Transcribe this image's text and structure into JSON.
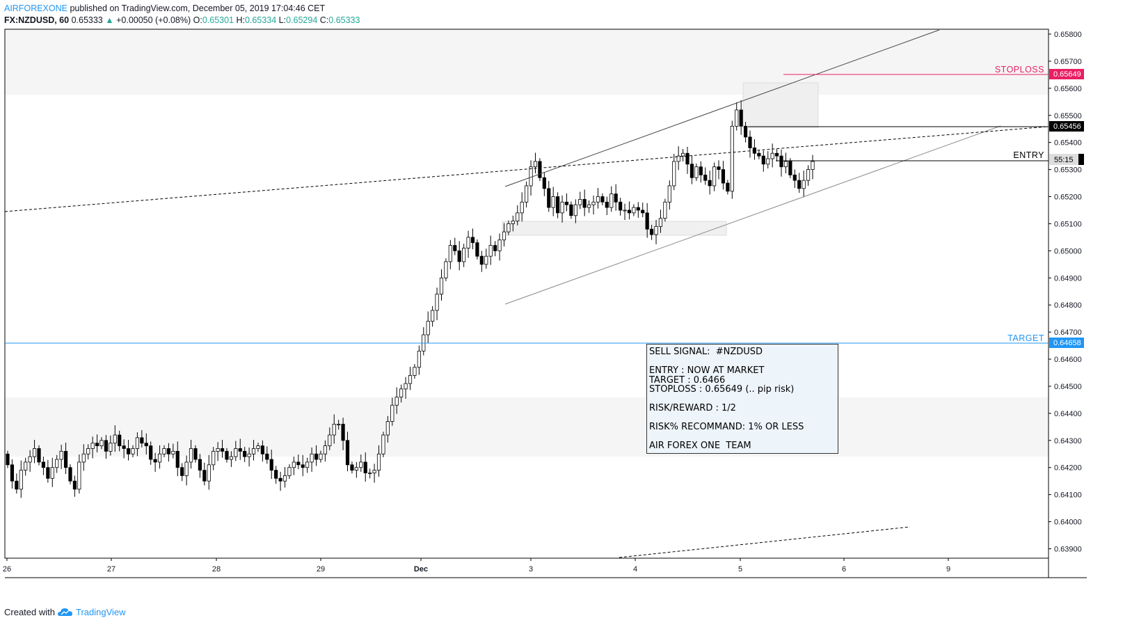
{
  "header": {
    "author": "AIRFOREXONE",
    "published": "published on TradingView.com, December 05, 2019 17:04:46 CET",
    "symbol": "FX:NZDUSD, 60",
    "last": "0.65333",
    "change_arrow": "▲",
    "change": "+0.00050 (+0.08%)",
    "o_label": "O:",
    "o": "0.65301",
    "h_label": "H:",
    "h": "0.65334",
    "l_label": "L:",
    "l": "0.65294",
    "c_label": "C:",
    "c": "0.65333"
  },
  "footer": {
    "created_with": "Created with",
    "brand": "TradingView"
  },
  "signal_box": {
    "line1": "SELL SIGNAL:  #NZDUSD",
    "line2": "ENTRY : NOW AT MARKET",
    "line3": "TARGET : 0.6466",
    "line4": "STOPLOSS : 0.65649 (.. pip risk)",
    "line5": "RISK/REWARD : 1/2",
    "line6": "RISK% RECOMMAND: 1% OR LESS",
    "line7": "AIR FOREX ONE  TEAM"
  },
  "colors": {
    "stoploss": "#e91e63",
    "target": "#2196f3",
    "up_candle": "#ffffff",
    "down_candle": "#000000",
    "price_up": "#26a69a"
  },
  "chart_data": {
    "type": "candlestick",
    "symbol": "FX:NZDUSD",
    "interval": "60",
    "y_ticks": [
      "0.65800",
      "0.65700",
      "0.65600",
      "0.65500",
      "0.65400",
      "0.65300",
      "0.65200",
      "0.65100",
      "0.65000",
      "0.64900",
      "0.64800",
      "0.64700",
      "0.64600",
      "0.64500",
      "0.64400",
      "0.64300",
      "0.64200",
      "0.64100",
      "0.64000",
      "0.63900"
    ],
    "x_ticks": [
      "26",
      "27",
      "28",
      "29",
      "Dec",
      "3",
      "4",
      "5",
      "6",
      "9"
    ],
    "levels": [
      {
        "label": "STOPLOSS",
        "value": "0.65649",
        "color": "#e91e63"
      },
      {
        "label": "",
        "value": "0.65456",
        "color": "#000000"
      },
      {
        "label": "ENTRY",
        "value": "55:15",
        "color": "#000000"
      },
      {
        "label": "TARGET",
        "value": "0.64658",
        "color": "#2196f3"
      }
    ],
    "closes": [
      0.6421,
      0.6415,
      0.6412,
      0.6419,
      0.6422,
      0.6424,
      0.6427,
      0.6422,
      0.642,
      0.6416,
      0.642,
      0.6423,
      0.6426,
      0.642,
      0.6415,
      0.6412,
      0.6422,
      0.6425,
      0.6427,
      0.6429,
      0.6428,
      0.643,
      0.6426,
      0.6429,
      0.6432,
      0.6428,
      0.6427,
      0.6425,
      0.6427,
      0.6431,
      0.6429,
      0.6428,
      0.6423,
      0.6422,
      0.6425,
      0.6427,
      0.6425,
      0.6426,
      0.642,
      0.6417,
      0.6422,
      0.6427,
      0.6423,
      0.6419,
      0.6415,
      0.6421,
      0.6426,
      0.6427,
      0.6426,
      0.6423,
      0.6424,
      0.6427,
      0.6426,
      0.6424,
      0.6425,
      0.6427,
      0.6428,
      0.6425,
      0.6423,
      0.6419,
      0.6416,
      0.6415,
      0.6417,
      0.642,
      0.6422,
      0.6421,
      0.642,
      0.6422,
      0.6425,
      0.6423,
      0.6425,
      0.6428,
      0.6432,
      0.6436,
      0.6436,
      0.643,
      0.6421,
      0.6419,
      0.642,
      0.6422,
      0.6418,
      0.6418,
      0.6419,
      0.6425,
      0.6432,
      0.6437,
      0.6443,
      0.6446,
      0.6449,
      0.6451,
      0.6454,
      0.6457,
      0.6463,
      0.6469,
      0.6474,
      0.6478,
      0.6484,
      0.649,
      0.6496,
      0.6502,
      0.65,
      0.6496,
      0.6501,
      0.6505,
      0.6503,
      0.6498,
      0.6495,
      0.6498,
      0.6502,
      0.65,
      0.6504,
      0.6507,
      0.651,
      0.6511,
      0.6514,
      0.6518,
      0.6524,
      0.6531,
      0.6533,
      0.6527,
      0.6523,
      0.6516,
      0.652,
      0.6514,
      0.6518,
      0.6517,
      0.6513,
      0.6517,
      0.6519,
      0.6516,
      0.6517,
      0.6518,
      0.652,
      0.6518,
      0.6516,
      0.6521,
      0.6518,
      0.6515,
      0.6515,
      0.6514,
      0.6516,
      0.6515,
      0.6514,
      0.6508,
      0.6506,
      0.6509,
      0.6512,
      0.6518,
      0.6524,
      0.6533,
      0.6535,
      0.6536,
      0.6532,
      0.6527,
      0.6531,
      0.6528,
      0.6526,
      0.6524,
      0.6531,
      0.653,
      0.6525,
      0.6522,
      0.6546,
      0.6552,
      0.6546,
      0.6542,
      0.6538,
      0.6536,
      0.6535,
      0.6532,
      0.6534,
      0.6536,
      0.6535,
      0.6531,
      0.6533,
      0.6528,
      0.6526,
      0.6523,
      0.6526,
      0.653,
      0.6533
    ]
  }
}
